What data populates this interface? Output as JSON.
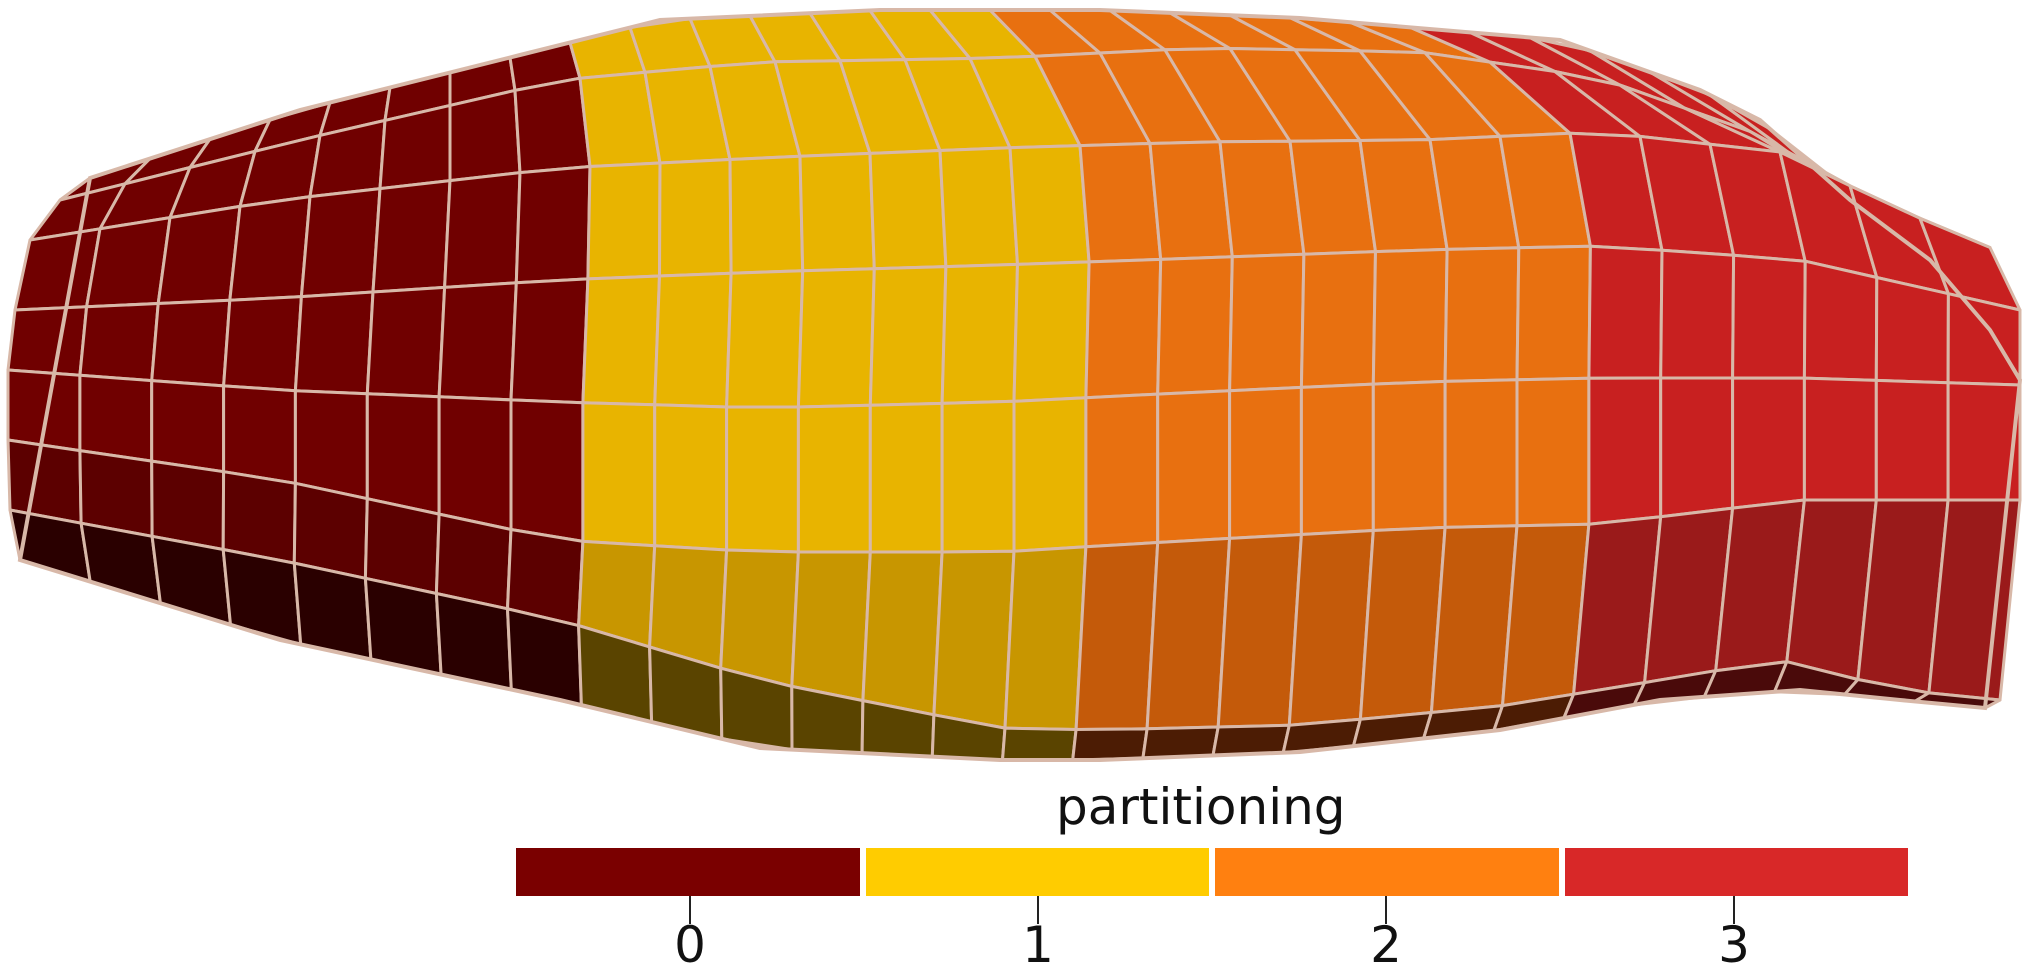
{
  "legend": {
    "title": "partitioning",
    "entries": [
      {
        "label": "0",
        "color": "#7a0000"
      },
      {
        "label": "1",
        "color": "#ffcc00"
      },
      {
        "label": "2",
        "color": "#ff8010"
      },
      {
        "label": "3",
        "color": "#d82828"
      }
    ]
  },
  "mesh": {
    "edge_color": "#d8b8a8",
    "partitions": [
      {
        "id": "0",
        "top": "#700000",
        "side": "#5c0000",
        "bottom": "#2a0000"
      },
      {
        "id": "1",
        "top": "#e8b400",
        "side": "#c89600",
        "bottom": "#5a4400"
      },
      {
        "id": "2",
        "top": "#e87010",
        "side": "#c45a0a",
        "bottom": "#4c1c04"
      },
      {
        "id": "3",
        "top": "#c82020",
        "side": "#9a1a1a",
        "bottom": "#4a0a0a"
      }
    ]
  }
}
